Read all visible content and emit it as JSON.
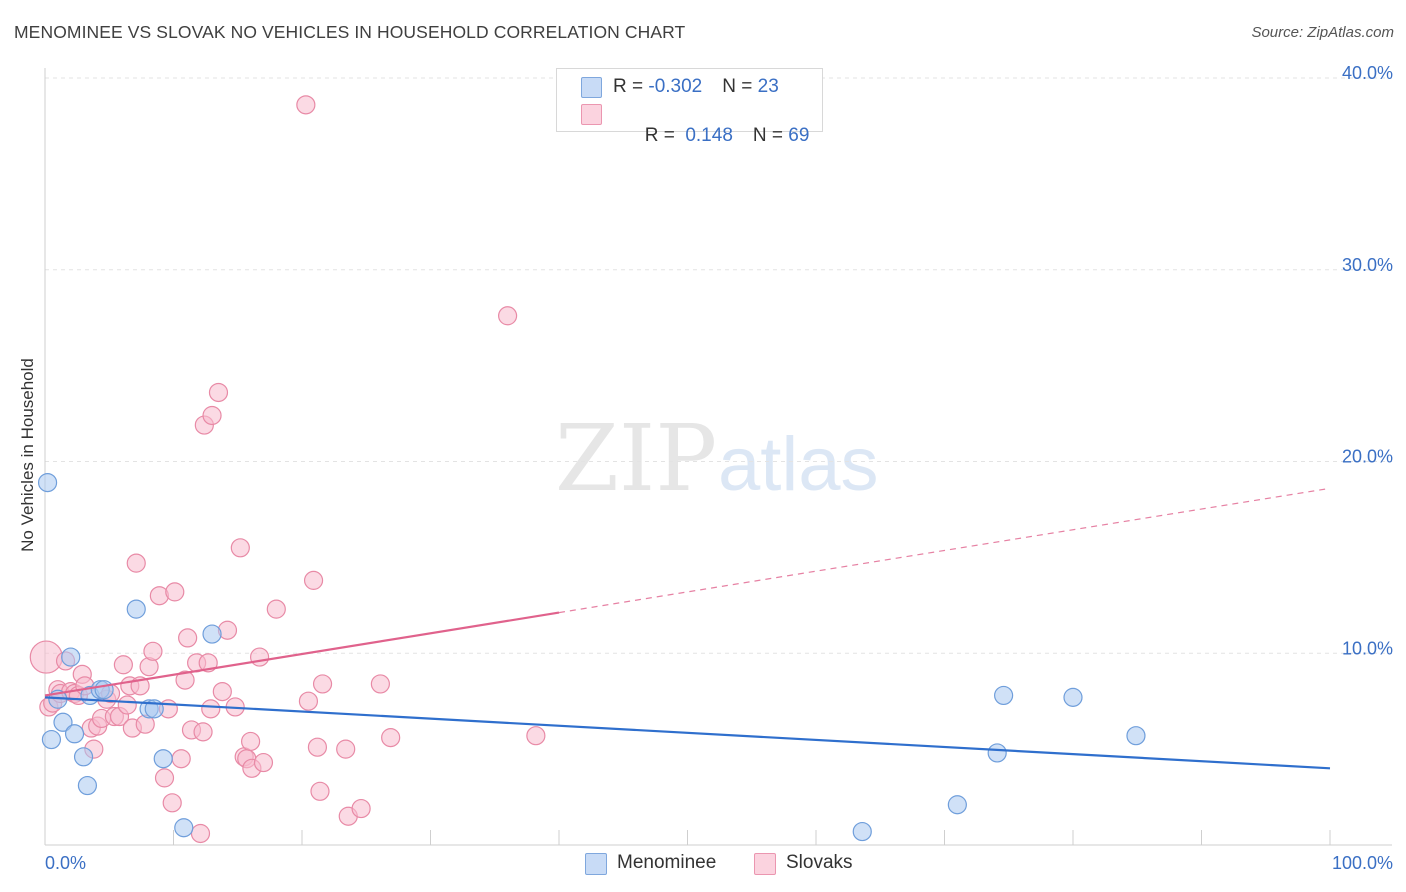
{
  "title": "MENOMINEE VS SLOVAK NO VEHICLES IN HOUSEHOLD CORRELATION CHART",
  "source": "Source: ZipAtlas.com",
  "watermark": {
    "zip": "ZIP",
    "atlas": "atlas"
  },
  "legend": {
    "rows": [
      {
        "r_label": "R = ",
        "r_value": "-0.302",
        "n_label": "N = ",
        "n_value": "23"
      },
      {
        "r_label": "R = ",
        "r_value": " 0.148",
        "n_label": "N = ",
        "n_value": "69"
      }
    ]
  },
  "bottom_legend": {
    "menominee": "Menominee",
    "slovaks": "Slovaks"
  },
  "colors": {
    "menominee_fill": "#aac8f0",
    "menominee_stroke": "#6f9edb",
    "menominee_line": "#2f6fcd",
    "slovak_fill": "#f7bccd",
    "slovak_stroke": "#e88aa6",
    "slovak_line": "#e0628c",
    "axis_label": "#3a6fc4"
  },
  "chart_data": {
    "type": "scatter",
    "title": "MENOMINEE VS SLOVAK NO VEHICLES IN HOUSEHOLD CORRELATION CHART",
    "xlabel": "",
    "ylabel": "No Vehicles in Household",
    "xlim": [
      0,
      100
    ],
    "ylim": [
      0,
      40
    ],
    "x_tick_labels": [
      "0.0%",
      "100.0%"
    ],
    "y_ticks": [
      10,
      20,
      30,
      40
    ],
    "y_tick_labels": [
      "10.0%",
      "20.0%",
      "30.0%",
      "40.0%"
    ],
    "grid": true,
    "series": [
      {
        "name": "Menominee",
        "r": -0.302,
        "n": 23,
        "trend": {
          "x0": 0,
          "y0": 7.7,
          "x1": 100,
          "y1": 4.0,
          "dashed_from": null
        },
        "points": [
          [
            0.2,
            18.9
          ],
          [
            0.5,
            5.5
          ],
          [
            1.0,
            7.6
          ],
          [
            1.4,
            6.4
          ],
          [
            2.0,
            9.8
          ],
          [
            2.3,
            5.8
          ],
          [
            3.0,
            4.6
          ],
          [
            3.3,
            3.1
          ],
          [
            3.5,
            7.8
          ],
          [
            4.3,
            8.1
          ],
          [
            4.6,
            8.1
          ],
          [
            7.1,
            12.3
          ],
          [
            8.1,
            7.1
          ],
          [
            8.5,
            7.1
          ],
          [
            9.2,
            4.5
          ],
          [
            10.8,
            0.9
          ],
          [
            13.0,
            11.0
          ],
          [
            71.0,
            2.1
          ],
          [
            74.1,
            4.8
          ],
          [
            74.6,
            7.8
          ],
          [
            80.0,
            7.7
          ],
          [
            84.9,
            5.7
          ],
          [
            63.6,
            0.7
          ]
        ]
      },
      {
        "name": "Slovaks",
        "r": 0.148,
        "n": 69,
        "trend": {
          "x0": 0,
          "y0": 7.8,
          "x1": 100,
          "y1": 18.6,
          "dashed_from": 40
        },
        "points": [
          [
            0.1,
            9.8
          ],
          [
            0.3,
            7.2
          ],
          [
            0.6,
            7.4
          ],
          [
            1.0,
            8.1
          ],
          [
            1.2,
            7.9
          ],
          [
            1.6,
            9.6
          ],
          [
            2.0,
            8.0
          ],
          [
            2.3,
            7.9
          ],
          [
            2.6,
            7.8
          ],
          [
            2.9,
            8.9
          ],
          [
            3.1,
            8.3
          ],
          [
            3.6,
            6.1
          ],
          [
            3.8,
            5.0
          ],
          [
            4.1,
            6.2
          ],
          [
            4.4,
            6.6
          ],
          [
            4.8,
            7.6
          ],
          [
            5.1,
            7.9
          ],
          [
            5.4,
            6.7
          ],
          [
            5.8,
            6.7
          ],
          [
            6.1,
            9.4
          ],
          [
            6.4,
            7.3
          ],
          [
            6.6,
            8.3
          ],
          [
            6.8,
            6.1
          ],
          [
            7.1,
            14.7
          ],
          [
            7.4,
            8.3
          ],
          [
            7.8,
            6.3
          ],
          [
            8.1,
            9.3
          ],
          [
            8.4,
            10.1
          ],
          [
            8.9,
            13.0
          ],
          [
            9.3,
            3.5
          ],
          [
            9.6,
            7.1
          ],
          [
            9.9,
            2.2
          ],
          [
            10.1,
            13.2
          ],
          [
            10.6,
            4.5
          ],
          [
            10.9,
            8.6
          ],
          [
            11.1,
            10.8
          ],
          [
            11.4,
            6.0
          ],
          [
            11.8,
            9.5
          ],
          [
            12.1,
            0.6
          ],
          [
            12.4,
            21.9
          ],
          [
            12.7,
            9.5
          ],
          [
            12.9,
            7.1
          ],
          [
            13.0,
            22.4
          ],
          [
            13.5,
            23.6
          ],
          [
            13.8,
            8.0
          ],
          [
            14.2,
            11.2
          ],
          [
            14.8,
            7.2
          ],
          [
            15.2,
            15.5
          ],
          [
            15.5,
            4.6
          ],
          [
            15.7,
            4.5
          ],
          [
            16.0,
            5.4
          ],
          [
            16.1,
            4.0
          ],
          [
            16.7,
            9.8
          ],
          [
            17.0,
            4.3
          ],
          [
            18.0,
            12.3
          ],
          [
            20.5,
            7.5
          ],
          [
            20.9,
            13.8
          ],
          [
            21.2,
            5.1
          ],
          [
            21.4,
            2.8
          ],
          [
            21.6,
            8.4
          ],
          [
            20.3,
            38.6
          ],
          [
            23.4,
            5.0
          ],
          [
            23.6,
            1.5
          ],
          [
            24.6,
            1.9
          ],
          [
            26.1,
            8.4
          ],
          [
            26.9,
            5.6
          ],
          [
            36.0,
            27.6
          ],
          [
            38.2,
            5.7
          ],
          [
            12.3,
            5.9
          ]
        ]
      }
    ]
  }
}
